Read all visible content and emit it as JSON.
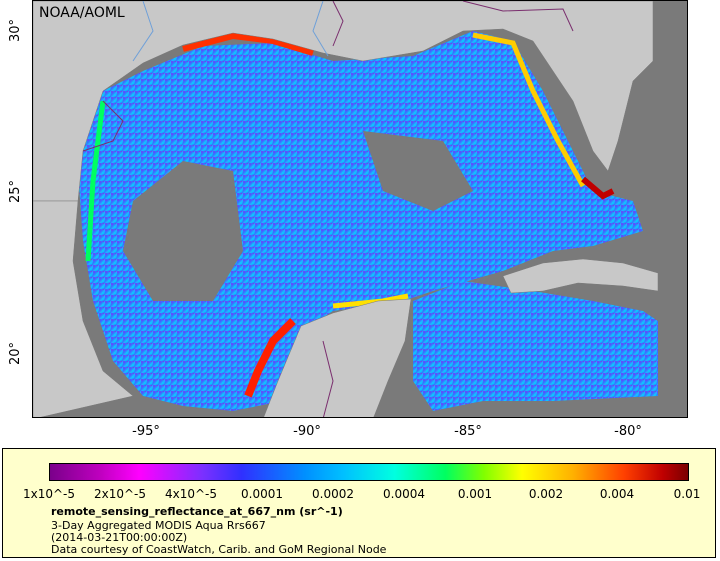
{
  "credit": "NOAA/AOML",
  "y_ticks": [
    "30°",
    "25°",
    "20°"
  ],
  "x_ticks": [
    "-95°",
    "-90°",
    "-85°",
    "-80°"
  ],
  "colorbar": {
    "labels": [
      "1x10^-5",
      "2x10^-5",
      "4x10^-5",
      "0.0001",
      "0.0002",
      "0.0004",
      "0.001",
      "0.002",
      "0.004",
      "0.01"
    ]
  },
  "legend": {
    "variable": "remote_sensing_reflectance_at_667_nm (sr^-1)",
    "dataset": "3-Day Aggregated MODIS Aqua Rrs667",
    "time": "(2014-03-21T00:00:00Z)",
    "source": "Data courtesy of CoastWatch, Carib. and GoM Regional Node"
  },
  "colors": {
    "land": "#c8c8c8",
    "nodata": "#7a7a7a",
    "border": "#7a2e6e",
    "river": "#6fa0d8"
  }
}
